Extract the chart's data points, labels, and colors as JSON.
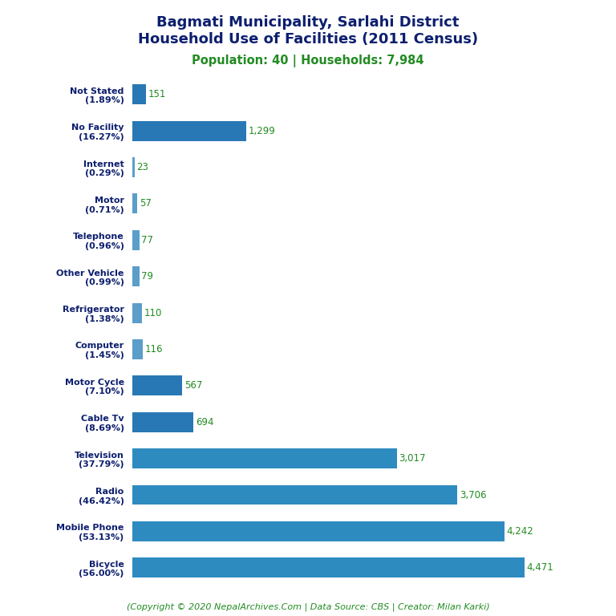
{
  "title_line1": "Bagmati Municipality, Sarlahi District",
  "title_line2": "Household Use of Facilities (2011 Census)",
  "subtitle": "Population: 40 | Households: 7,984",
  "footer": "(Copyright © 2020 NepalArchives.Com | Data Source: CBS | Creator: Milan Karki)",
  "categories": [
    "Not Stated\n(1.89%)",
    "No Facility\n(16.27%)",
    "Internet\n(0.29%)",
    "Motor\n(0.71%)",
    "Telephone\n(0.96%)",
    "Other Vehicle\n(0.99%)",
    "Refrigerator\n(1.38%)",
    "Computer\n(1.45%)",
    "Motor Cycle\n(7.10%)",
    "Cable Tv\n(8.69%)",
    "Television\n(37.79%)",
    "Radio\n(46.42%)",
    "Mobile Phone\n(53.13%)",
    "Bicycle\n(56.00%)"
  ],
  "values": [
    151,
    1299,
    23,
    57,
    77,
    79,
    110,
    116,
    567,
    694,
    3017,
    3706,
    4242,
    4471
  ],
  "bar_colors": [
    "#2878b5",
    "#2878b5",
    "#5b9ec9",
    "#5b9ec9",
    "#5b9ec9",
    "#5b9ec9",
    "#5b9ec9",
    "#5b9ec9",
    "#2878b5",
    "#2878b5",
    "#2e8bc0",
    "#2e8bc0",
    "#2e8bc0",
    "#2e8bc0"
  ],
  "value_color": "#228B22",
  "title_color": "#0d1f6e",
  "subtitle_color": "#228B22",
  "footer_color": "#228B22",
  "background_color": "#ffffff",
  "xlim": [
    0,
    5200
  ],
  "bar_height": 0.55
}
